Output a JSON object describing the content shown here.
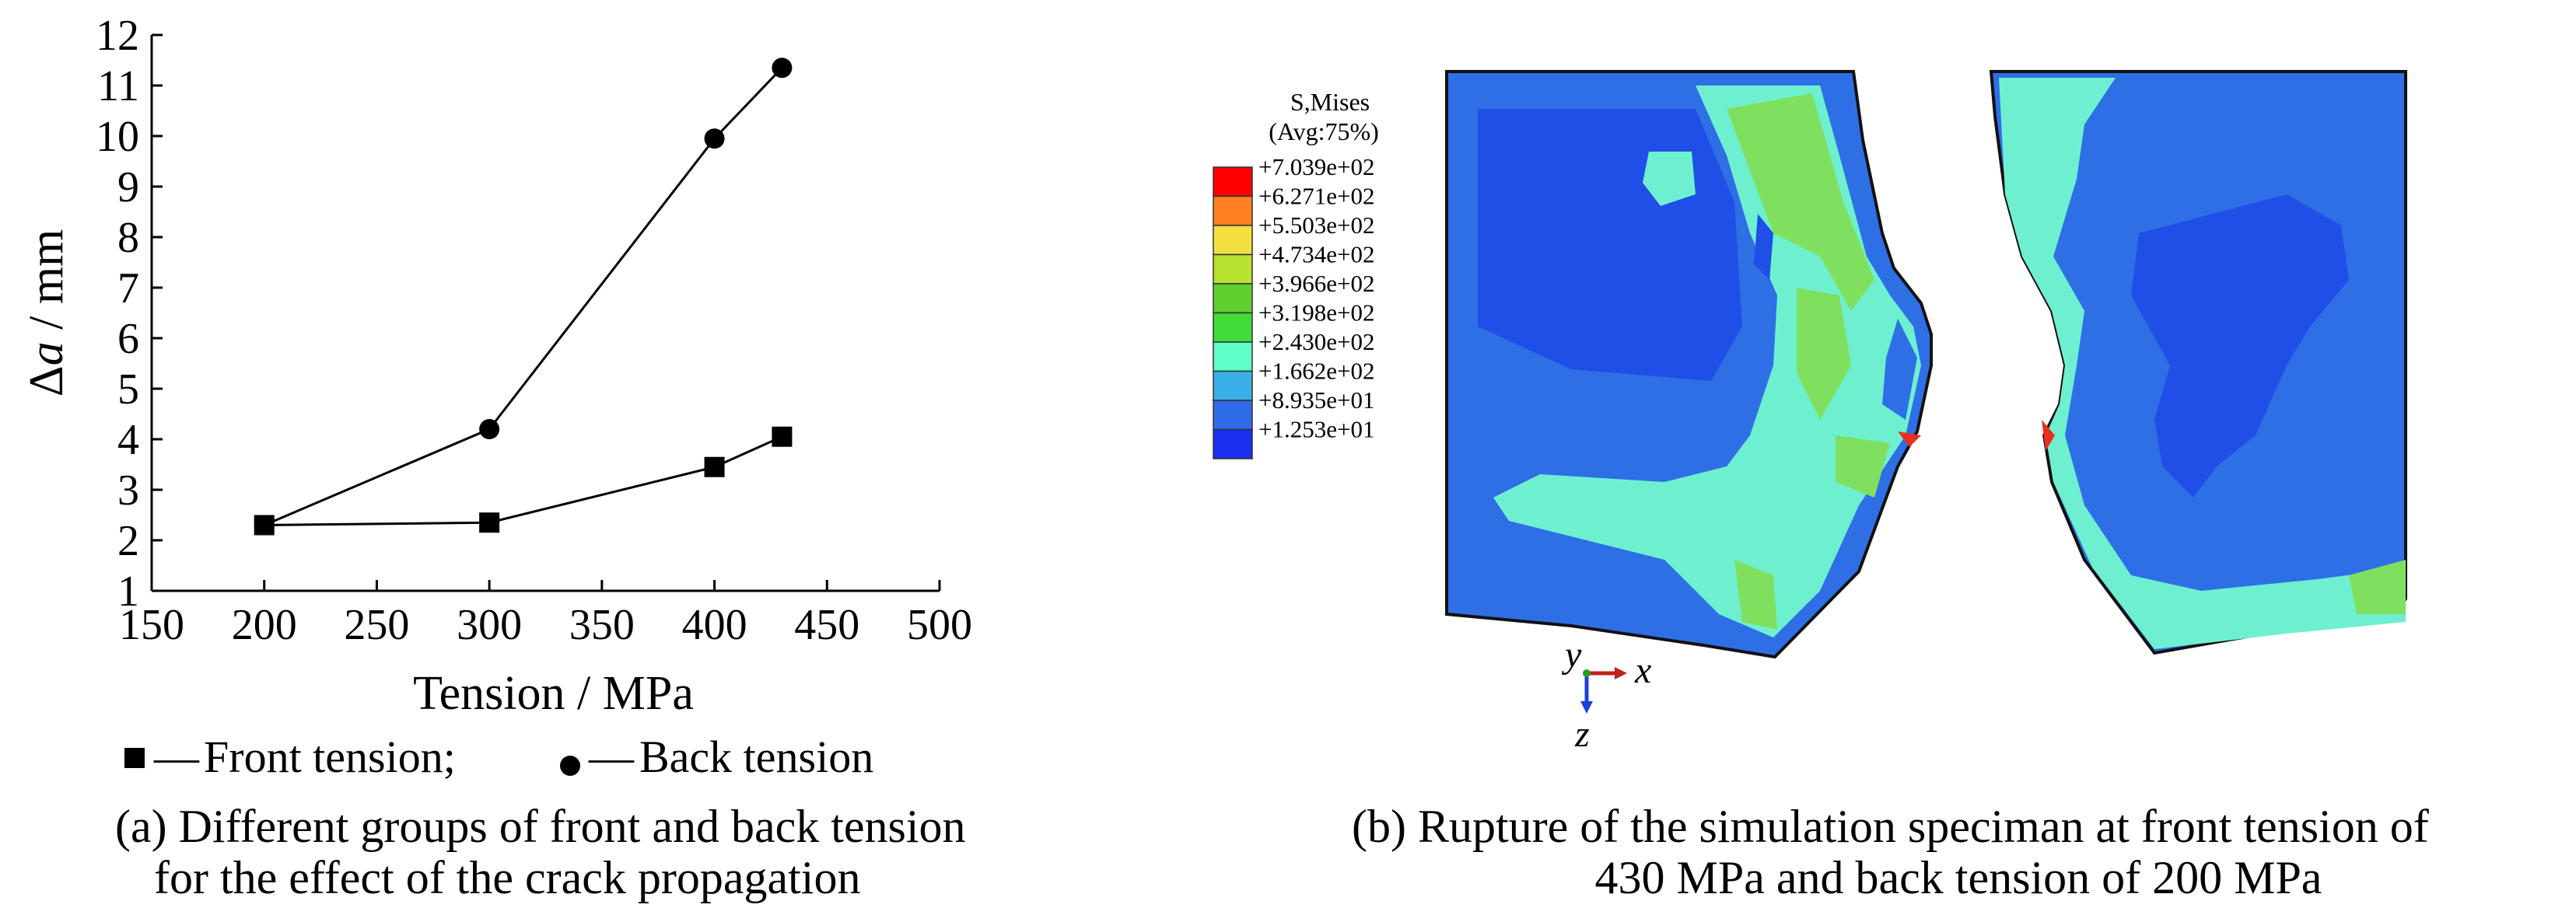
{
  "chart_data": {
    "type": "line",
    "xlabel": "Tension / MPa",
    "ylabel_symbol": "Δ",
    "ylabel_var": "a",
    "ylabel_unit": " / mm",
    "xlim": [
      150,
      500
    ],
    "ylim": [
      1,
      12
    ],
    "x_ticks": [
      "150",
      "200",
      "250",
      "300",
      "350",
      "400",
      "450",
      "500"
    ],
    "y_ticks": [
      "1",
      "2",
      "3",
      "4",
      "5",
      "6",
      "7",
      "8",
      "9",
      "10",
      "11",
      "12"
    ],
    "grid": false,
    "legend_position": "bottom",
    "series": [
      {
        "name": "Front tension;",
        "marker": "square",
        "x": [
          200,
          300,
          400,
          430
        ],
        "values": [
          2.3,
          2.35,
          3.45,
          4.05
        ]
      },
      {
        "name": "Back tension",
        "marker": "circle",
        "x": [
          200,
          300,
          400,
          430
        ],
        "values": [
          2.3,
          4.2,
          9.95,
          11.35
        ]
      }
    ],
    "legend_dash": "—"
  },
  "caption_a": {
    "line1": "(a)  Different groups of front and back tension",
    "line2": "for the effect of the crack propagation"
  },
  "contour": {
    "title_line1": "S,Mises",
    "title_line2": "(Avg:75%)",
    "levels": [
      "+7.039e+02",
      "+6.271e+02",
      "+5.503e+02",
      "+4.734e+02",
      "+3.966e+02",
      "+3.198e+02",
      "+2.430e+02",
      "+1.662e+02",
      "+8.935e+01",
      "+1.253e+01"
    ],
    "band_colors": [
      "#ff0000",
      "#ff8020",
      "#f2e040",
      "#b8e030",
      "#60d030",
      "#3fdc3a",
      "#60ffc8",
      "#3ab0e8",
      "#2f6ae8",
      "#1a2ef0"
    ],
    "axis_labels": {
      "y": "y",
      "x": "x",
      "z": "z"
    },
    "colors": {
      "background_blue": "#2f6fe6",
      "dark_blue": "#1f4fe6",
      "cyan": "#6ef0d0",
      "green": "#7fe060",
      "red": "#e83020"
    }
  },
  "caption_b": {
    "line1": "(b)  Rupture of the simulation speciman at front tension of",
    "line2": "430 MPa and back tension of 200 MPa"
  }
}
